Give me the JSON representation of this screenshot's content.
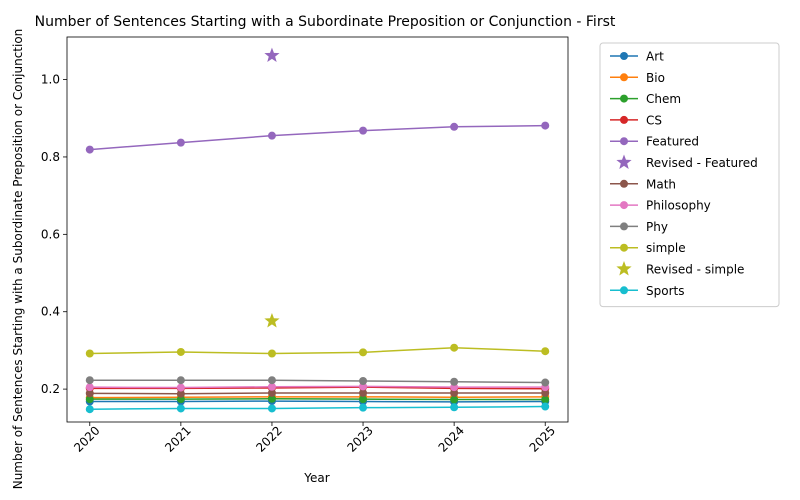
{
  "chart_data": {
    "type": "line",
    "title": "Number of Sentences Starting with a Subordinate Preposition or Conjunction - First",
    "xlabel": "Year",
    "ylabel": "Number of Sentences Starting with a Subordinate Preposition or Conjunction",
    "x": [
      "2020",
      "2021",
      "2022",
      "2023",
      "2024",
      "2025"
    ],
    "xlim": [
      2019.75,
      2025.25
    ],
    "ylim": [
      0.115,
      1.11
    ],
    "yticks": [
      "0.2",
      "0.4",
      "0.6",
      "0.8",
      "1.0"
    ],
    "ytick_values": [
      0.2,
      0.4,
      0.6,
      0.8,
      1.0
    ],
    "grid": false,
    "legend_position": "outside-right",
    "series": [
      {
        "name": "Art",
        "color": "#1f77b4",
        "marker": "circle",
        "values": [
          0.168,
          0.168,
          0.169,
          0.168,
          0.167,
          0.168
        ]
      },
      {
        "name": "Bio",
        "color": "#ff7f0e",
        "marker": "circle",
        "values": [
          0.178,
          0.179,
          0.18,
          0.18,
          0.179,
          0.18
        ]
      },
      {
        "name": "Chem",
        "color": "#2ca02c",
        "marker": "circle",
        "values": [
          0.174,
          0.174,
          0.175,
          0.174,
          0.173,
          0.173
        ]
      },
      {
        "name": "CS",
        "color": "#d62728",
        "marker": "circle",
        "values": [
          0.202,
          0.202,
          0.203,
          0.205,
          0.202,
          0.201
        ]
      },
      {
        "name": "Featured",
        "color": "#9467bd",
        "marker": "circle",
        "values": [
          0.819,
          0.837,
          0.855,
          0.868,
          0.878,
          0.881
        ]
      },
      {
        "name": "Revised - Featured",
        "color": "#9467bd",
        "marker": "star",
        "points": [
          {
            "x": "2022",
            "y": 1.062
          }
        ]
      },
      {
        "name": "Math",
        "color": "#8c564b",
        "marker": "circle",
        "values": [
          0.189,
          0.188,
          0.19,
          0.19,
          0.19,
          0.19
        ]
      },
      {
        "name": "Philosophy",
        "color": "#e377c2",
        "marker": "circle",
        "values": [
          0.205,
          0.204,
          0.206,
          0.207,
          0.205,
          0.205
        ]
      },
      {
        "name": "Phy",
        "color": "#7f7f7f",
        "marker": "circle",
        "values": [
          0.223,
          0.223,
          0.223,
          0.221,
          0.219,
          0.217
        ]
      },
      {
        "name": "simple",
        "color": "#bcbd22",
        "marker": "circle",
        "values": [
          0.292,
          0.296,
          0.292,
          0.295,
          0.307,
          0.298
        ]
      },
      {
        "name": "Revised - simple",
        "color": "#bcbd22",
        "marker": "star",
        "points": [
          {
            "x": "2022",
            "y": 0.376
          }
        ]
      },
      {
        "name": "Sports",
        "color": "#17becf",
        "marker": "circle",
        "values": [
          0.148,
          0.15,
          0.15,
          0.152,
          0.153,
          0.155
        ]
      }
    ]
  }
}
